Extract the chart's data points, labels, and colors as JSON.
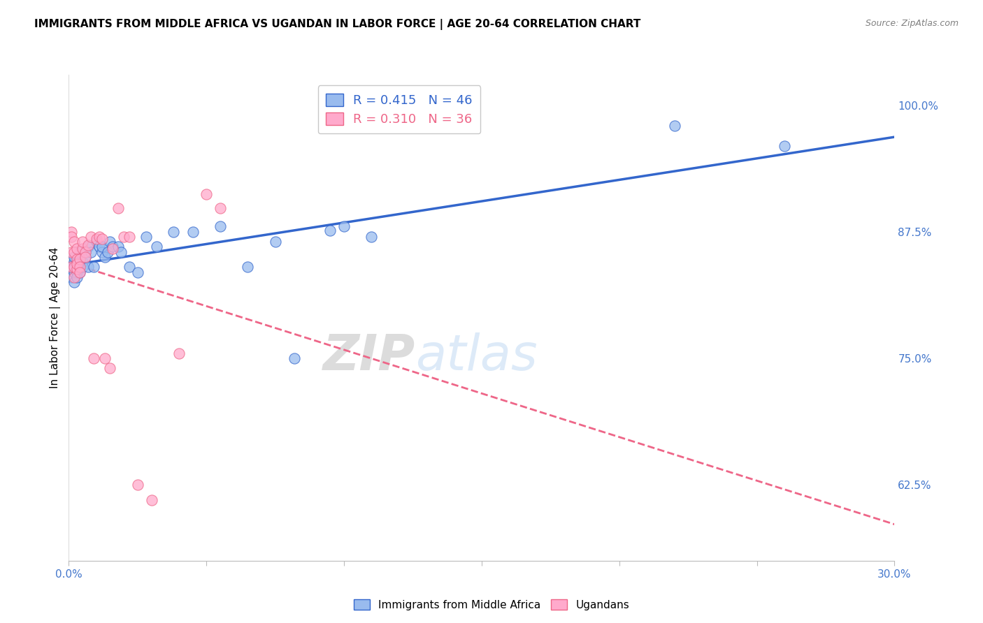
{
  "title": "IMMIGRANTS FROM MIDDLE AFRICA VS UGANDAN IN LABOR FORCE | AGE 20-64 CORRELATION CHART",
  "source": "Source: ZipAtlas.com",
  "xlabel": "",
  "ylabel": "In Labor Force | Age 20-64",
  "xlim": [
    0.0,
    0.3
  ],
  "ylim": [
    0.55,
    1.03
  ],
  "xticks": [
    0.0,
    0.05,
    0.1,
    0.15,
    0.2,
    0.25,
    0.3
  ],
  "xticklabels": [
    "0.0%",
    "",
    "",
    "",
    "",
    "",
    "30.0%"
  ],
  "yticks": [
    0.625,
    0.75,
    0.875,
    1.0
  ],
  "yticklabels": [
    "62.5%",
    "75.0%",
    "87.5%",
    "100.0%"
  ],
  "R_blue": 0.415,
  "N_blue": 46,
  "R_pink": 0.31,
  "N_pink": 36,
  "legend_label_blue": "Immigrants from Middle Africa",
  "legend_label_pink": "Ugandans",
  "blue_color": "#99BBEE",
  "pink_color": "#FFAACC",
  "blue_line_color": "#3366CC",
  "pink_line_color": "#EE6688",
  "axis_color": "#4477CC",
  "grid_color": "#CCCCCC",
  "watermark_zip": "ZIP",
  "watermark_atlas": "atlas",
  "blue_x": [
    0.001,
    0.001,
    0.002,
    0.002,
    0.002,
    0.002,
    0.003,
    0.003,
    0.003,
    0.003,
    0.004,
    0.004,
    0.004,
    0.005,
    0.005,
    0.006,
    0.006,
    0.007,
    0.007,
    0.008,
    0.009,
    0.01,
    0.011,
    0.012,
    0.012,
    0.013,
    0.014,
    0.015,
    0.016,
    0.018,
    0.019,
    0.022,
    0.025,
    0.028,
    0.032,
    0.038,
    0.045,
    0.055,
    0.065,
    0.075,
    0.082,
    0.095,
    0.1,
    0.11,
    0.22,
    0.26
  ],
  "blue_y": [
    0.84,
    0.83,
    0.845,
    0.835,
    0.85,
    0.825,
    0.845,
    0.835,
    0.84,
    0.83,
    0.85,
    0.855,
    0.835,
    0.845,
    0.84,
    0.855,
    0.85,
    0.86,
    0.84,
    0.855,
    0.84,
    0.865,
    0.86,
    0.855,
    0.86,
    0.85,
    0.855,
    0.865,
    0.86,
    0.86,
    0.855,
    0.84,
    0.835,
    0.87,
    0.86,
    0.875,
    0.875,
    0.88,
    0.84,
    0.865,
    0.75,
    0.876,
    0.88,
    0.87,
    0.98,
    0.96
  ],
  "pink_x": [
    0.001,
    0.001,
    0.001,
    0.001,
    0.002,
    0.002,
    0.002,
    0.002,
    0.003,
    0.003,
    0.003,
    0.003,
    0.004,
    0.004,
    0.004,
    0.005,
    0.005,
    0.006,
    0.006,
    0.007,
    0.008,
    0.009,
    0.01,
    0.011,
    0.012,
    0.013,
    0.015,
    0.016,
    0.018,
    0.02,
    0.022,
    0.025,
    0.03,
    0.04,
    0.05,
    0.055
  ],
  "pink_y": [
    0.875,
    0.87,
    0.855,
    0.84,
    0.865,
    0.855,
    0.84,
    0.83,
    0.858,
    0.848,
    0.838,
    0.843,
    0.848,
    0.84,
    0.835,
    0.858,
    0.865,
    0.855,
    0.85,
    0.862,
    0.87,
    0.75,
    0.868,
    0.87,
    0.868,
    0.75,
    0.74,
    0.858,
    0.898,
    0.87,
    0.87,
    0.625,
    0.61,
    0.755,
    0.912,
    0.898
  ],
  "blue_intercept": 0.833,
  "blue_slope": 0.54,
  "pink_intercept": 0.843,
  "pink_slope": 0.65
}
